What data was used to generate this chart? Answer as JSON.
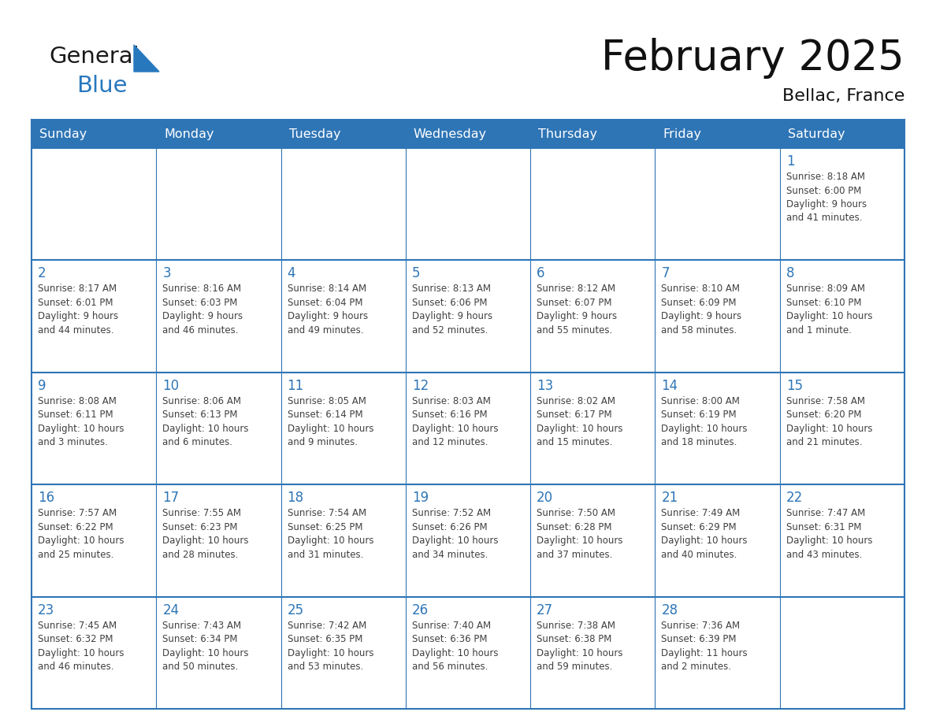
{
  "title": "February 2025",
  "subtitle": "Bellac, France",
  "header_color": "#2E75B6",
  "header_text_color": "#FFFFFF",
  "cell_bg_color": "#FFFFFF",
  "cell_alt_bg": "#F2F2F2",
  "border_color": "#2E75B6",
  "days_of_week": [
    "Sunday",
    "Monday",
    "Tuesday",
    "Wednesday",
    "Thursday",
    "Friday",
    "Saturday"
  ],
  "day_number_color": "#2E75B6",
  "text_color": "#404040",
  "logo_general_color": "#1a1a1a",
  "logo_blue_color": "#2878BE",
  "calendar_data": [
    [
      null,
      null,
      null,
      null,
      null,
      null,
      {
        "day": 1,
        "sunrise": "Sunrise: 8:18 AM",
        "sunset": "Sunset: 6:00 PM",
        "daylight": "Daylight: 9 hours\nand 41 minutes."
      }
    ],
    [
      {
        "day": 2,
        "sunrise": "Sunrise: 8:17 AM",
        "sunset": "Sunset: 6:01 PM",
        "daylight": "Daylight: 9 hours\nand 44 minutes."
      },
      {
        "day": 3,
        "sunrise": "Sunrise: 8:16 AM",
        "sunset": "Sunset: 6:03 PM",
        "daylight": "Daylight: 9 hours\nand 46 minutes."
      },
      {
        "day": 4,
        "sunrise": "Sunrise: 8:14 AM",
        "sunset": "Sunset: 6:04 PM",
        "daylight": "Daylight: 9 hours\nand 49 minutes."
      },
      {
        "day": 5,
        "sunrise": "Sunrise: 8:13 AM",
        "sunset": "Sunset: 6:06 PM",
        "daylight": "Daylight: 9 hours\nand 52 minutes."
      },
      {
        "day": 6,
        "sunrise": "Sunrise: 8:12 AM",
        "sunset": "Sunset: 6:07 PM",
        "daylight": "Daylight: 9 hours\nand 55 minutes."
      },
      {
        "day": 7,
        "sunrise": "Sunrise: 8:10 AM",
        "sunset": "Sunset: 6:09 PM",
        "daylight": "Daylight: 9 hours\nand 58 minutes."
      },
      {
        "day": 8,
        "sunrise": "Sunrise: 8:09 AM",
        "sunset": "Sunset: 6:10 PM",
        "daylight": "Daylight: 10 hours\nand 1 minute."
      }
    ],
    [
      {
        "day": 9,
        "sunrise": "Sunrise: 8:08 AM",
        "sunset": "Sunset: 6:11 PM",
        "daylight": "Daylight: 10 hours\nand 3 minutes."
      },
      {
        "day": 10,
        "sunrise": "Sunrise: 8:06 AM",
        "sunset": "Sunset: 6:13 PM",
        "daylight": "Daylight: 10 hours\nand 6 minutes."
      },
      {
        "day": 11,
        "sunrise": "Sunrise: 8:05 AM",
        "sunset": "Sunset: 6:14 PM",
        "daylight": "Daylight: 10 hours\nand 9 minutes."
      },
      {
        "day": 12,
        "sunrise": "Sunrise: 8:03 AM",
        "sunset": "Sunset: 6:16 PM",
        "daylight": "Daylight: 10 hours\nand 12 minutes."
      },
      {
        "day": 13,
        "sunrise": "Sunrise: 8:02 AM",
        "sunset": "Sunset: 6:17 PM",
        "daylight": "Daylight: 10 hours\nand 15 minutes."
      },
      {
        "day": 14,
        "sunrise": "Sunrise: 8:00 AM",
        "sunset": "Sunset: 6:19 PM",
        "daylight": "Daylight: 10 hours\nand 18 minutes."
      },
      {
        "day": 15,
        "sunrise": "Sunrise: 7:58 AM",
        "sunset": "Sunset: 6:20 PM",
        "daylight": "Daylight: 10 hours\nand 21 minutes."
      }
    ],
    [
      {
        "day": 16,
        "sunrise": "Sunrise: 7:57 AM",
        "sunset": "Sunset: 6:22 PM",
        "daylight": "Daylight: 10 hours\nand 25 minutes."
      },
      {
        "day": 17,
        "sunrise": "Sunrise: 7:55 AM",
        "sunset": "Sunset: 6:23 PM",
        "daylight": "Daylight: 10 hours\nand 28 minutes."
      },
      {
        "day": 18,
        "sunrise": "Sunrise: 7:54 AM",
        "sunset": "Sunset: 6:25 PM",
        "daylight": "Daylight: 10 hours\nand 31 minutes."
      },
      {
        "day": 19,
        "sunrise": "Sunrise: 7:52 AM",
        "sunset": "Sunset: 6:26 PM",
        "daylight": "Daylight: 10 hours\nand 34 minutes."
      },
      {
        "day": 20,
        "sunrise": "Sunrise: 7:50 AM",
        "sunset": "Sunset: 6:28 PM",
        "daylight": "Daylight: 10 hours\nand 37 minutes."
      },
      {
        "day": 21,
        "sunrise": "Sunrise: 7:49 AM",
        "sunset": "Sunset: 6:29 PM",
        "daylight": "Daylight: 10 hours\nand 40 minutes."
      },
      {
        "day": 22,
        "sunrise": "Sunrise: 7:47 AM",
        "sunset": "Sunset: 6:31 PM",
        "daylight": "Daylight: 10 hours\nand 43 minutes."
      }
    ],
    [
      {
        "day": 23,
        "sunrise": "Sunrise: 7:45 AM",
        "sunset": "Sunset: 6:32 PM",
        "daylight": "Daylight: 10 hours\nand 46 minutes."
      },
      {
        "day": 24,
        "sunrise": "Sunrise: 7:43 AM",
        "sunset": "Sunset: 6:34 PM",
        "daylight": "Daylight: 10 hours\nand 50 minutes."
      },
      {
        "day": 25,
        "sunrise": "Sunrise: 7:42 AM",
        "sunset": "Sunset: 6:35 PM",
        "daylight": "Daylight: 10 hours\nand 53 minutes."
      },
      {
        "day": 26,
        "sunrise": "Sunrise: 7:40 AM",
        "sunset": "Sunset: 6:36 PM",
        "daylight": "Daylight: 10 hours\nand 56 minutes."
      },
      {
        "day": 27,
        "sunrise": "Sunrise: 7:38 AM",
        "sunset": "Sunset: 6:38 PM",
        "daylight": "Daylight: 10 hours\nand 59 minutes."
      },
      {
        "day": 28,
        "sunrise": "Sunrise: 7:36 AM",
        "sunset": "Sunset: 6:39 PM",
        "daylight": "Daylight: 11 hours\nand 2 minutes."
      },
      null
    ]
  ]
}
